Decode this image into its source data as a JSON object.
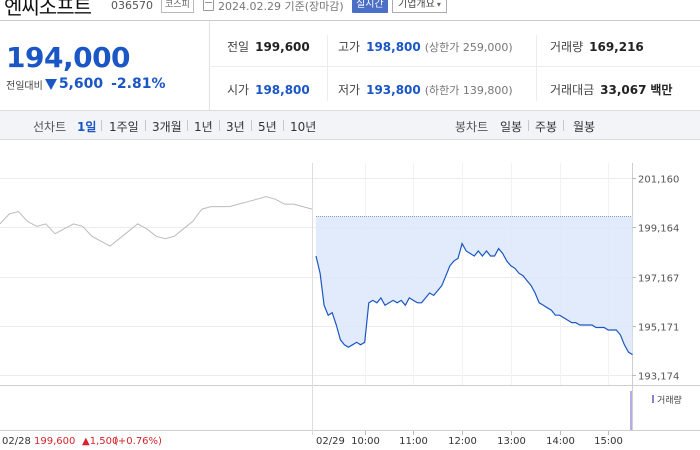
{
  "header": {
    "stock_name": "엔씨소프트",
    "stock_code": "036570",
    "market": "코스피",
    "date_text": "2024.02.29 기준(장마감)",
    "live_button": "실시간",
    "overview_button": "기업개요",
    "overview_caret": "▾"
  },
  "summary": {
    "price": "194,000",
    "change_label": "전일대비",
    "change_amount": "5,600",
    "change_percent": "-2.81%",
    "direction_icon": "down-triangle-icon",
    "prev_close_label": "전일",
    "prev_close": "199,600",
    "high_label": "고가",
    "high": "198,800",
    "upper_limit_label": "상한가",
    "upper_limit": "259,000",
    "volume_label": "거래량",
    "volume": "169,216",
    "open_label": "시가",
    "open": "198,800",
    "low_label": "저가",
    "low": "193,800",
    "lower_limit_label": "하한가",
    "lower_limit": "139,800",
    "trade_value_label": "거래대금",
    "trade_value": "33,067",
    "trade_value_unit": "백만"
  },
  "tabs": {
    "line_chart_label": "선차트",
    "line_periods": [
      "1일",
      "1주일",
      "3개월",
      "1년",
      "3년",
      "5년",
      "10년"
    ],
    "active_period": "1일",
    "candle_chart_label": "봉차트",
    "candle_periods": [
      "일봉",
      "주봉",
      "월봉"
    ]
  },
  "colors": {
    "accent_blue": "#1a56c4",
    "up_red": "#d6242a",
    "fill_blue": "#dce8fa",
    "prev_day_line": "#bbbbbb"
  },
  "chart_data": {
    "type": "line",
    "y_ticks": [
      "201,160",
      "199,164",
      "197,167",
      "195,171",
      "193,174"
    ],
    "ylim": [
      193174,
      201160
    ],
    "reference_price": 199600,
    "prev_day": {
      "date": "02/28",
      "close": "199,600",
      "change": "▲1,500",
      "change_percent": "(+0.76%)",
      "values": [
        199300,
        199700,
        199800,
        199400,
        199200,
        199300,
        198900,
        199100,
        199300,
        199200,
        198800,
        198600,
        198400,
        198700,
        199000,
        199300,
        199100,
        198800,
        198700,
        198800,
        199100,
        199400,
        199900,
        200000,
        200000,
        200000,
        200100,
        200200,
        200300,
        200400,
        200300,
        200100,
        200100,
        200000,
        199900
      ]
    },
    "today": {
      "date": "02/29",
      "x_ticks": [
        "10:00",
        "11:00",
        "12:00",
        "13:00",
        "14:00",
        "15:00"
      ],
      "times": [
        "09:00",
        "09:05",
        "09:10",
        "09:15",
        "09:20",
        "09:25",
        "09:30",
        "09:35",
        "09:40",
        "09:45",
        "09:50",
        "09:55",
        "10:00",
        "10:05",
        "10:10",
        "10:15",
        "10:20",
        "10:25",
        "10:30",
        "10:35",
        "10:40",
        "10:45",
        "10:50",
        "10:55",
        "11:00",
        "11:05",
        "11:10",
        "11:15",
        "11:20",
        "11:25",
        "11:30",
        "11:35",
        "11:40",
        "11:45",
        "11:50",
        "11:55",
        "12:00",
        "12:05",
        "12:10",
        "12:15",
        "12:20",
        "12:25",
        "12:30",
        "12:35",
        "12:40",
        "12:45",
        "12:50",
        "12:55",
        "13:00",
        "13:05",
        "13:10",
        "13:15",
        "13:20",
        "13:25",
        "13:30",
        "13:35",
        "13:40",
        "13:45",
        "13:50",
        "13:55",
        "14:00",
        "14:05",
        "14:10",
        "14:15",
        "14:20",
        "14:25",
        "14:30",
        "14:35",
        "14:40",
        "14:45",
        "14:50",
        "14:55",
        "15:00",
        "15:05",
        "15:10",
        "15:15",
        "15:20",
        "15:25",
        "15:30"
      ],
      "values": [
        198000,
        197300,
        196000,
        195600,
        195700,
        195200,
        194600,
        194400,
        194300,
        194400,
        194500,
        194400,
        194500,
        196100,
        196200,
        196100,
        196300,
        196000,
        196100,
        196200,
        196100,
        196200,
        196000,
        196300,
        196200,
        196100,
        196100,
        196300,
        196500,
        196400,
        196600,
        196800,
        197200,
        197600,
        197800,
        197900,
        198500,
        198200,
        198100,
        198000,
        198200,
        198000,
        198200,
        198000,
        198000,
        198300,
        198100,
        197800,
        197600,
        197500,
        197300,
        197200,
        197000,
        196800,
        196500,
        196100,
        196000,
        195900,
        195800,
        195600,
        195600,
        195500,
        195400,
        195300,
        195300,
        195200,
        195200,
        195200,
        195200,
        195100,
        195100,
        195100,
        195000,
        195000,
        195000,
        194800,
        194400,
        194100,
        194000
      ]
    },
    "volume_label": "거래량"
  }
}
